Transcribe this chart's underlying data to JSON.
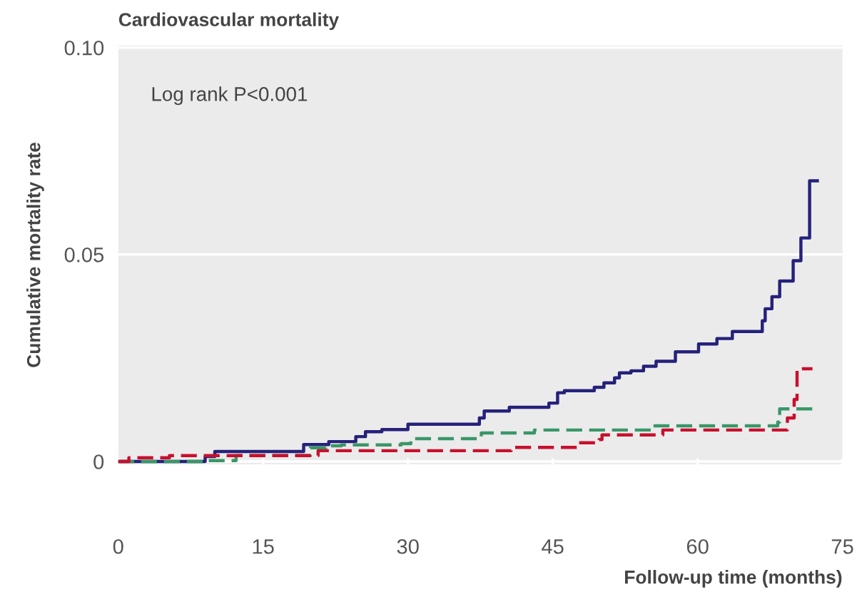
{
  "chart_data": {
    "type": "step",
    "title": "Cardiovascular mortality",
    "xlabel": "Follow-up time (months)",
    "ylabel": "Cumulative mortality rate",
    "annotations": [
      "Log rank P<0.001"
    ],
    "xlim": [
      0,
      75
    ],
    "xticks": [
      0,
      15,
      30,
      45,
      60,
      75
    ],
    "ylim": [
      -0.0007,
      0.1005
    ],
    "yticks": [
      0,
      0.05,
      {
        "value": 0.1,
        "label": "0.10"
      }
    ],
    "grid": "y",
    "series": [
      {
        "color": "#25217a",
        "line_style": "solid",
        "x": [
          0,
          9.0,
          10.0,
          19.2,
          21.8,
          24.6,
          25.6,
          27.3,
          30.0,
          37.4,
          37.9,
          40.5,
          44.6,
          45.5,
          46.2,
          49.3,
          50.3,
          51.4,
          51.9,
          53.1,
          54.4,
          55.7,
          57.7,
          60.1,
          62.0,
          63.6,
          66.7,
          67.0,
          67.7,
          68.5,
          69.9,
          70.7,
          71.6,
          72.4
        ],
        "values": [
          0,
          0.0012,
          0.0024,
          0.0041,
          0.0048,
          0.006,
          0.0072,
          0.0077,
          0.009,
          0.0105,
          0.0122,
          0.0131,
          0.0141,
          0.0166,
          0.0171,
          0.0179,
          0.019,
          0.0202,
          0.0214,
          0.0219,
          0.023,
          0.0242,
          0.0265,
          0.0284,
          0.0297,
          0.0314,
          0.034,
          0.0369,
          0.0398,
          0.0436,
          0.0485,
          0.054,
          0.0678,
          0.0678
        ]
      },
      {
        "color": "#3a9668",
        "line_style": "dashed",
        "x": [
          0,
          9.0,
          12.2,
          19.9,
          21.5,
          23.1,
          29.3,
          30.3,
          37.6,
          43.1,
          55.2,
          68.3,
          68.5,
          72.2
        ],
        "values": [
          0,
          0.0002,
          0.0014,
          0.0033,
          0.0038,
          0.004,
          0.0043,
          0.0055,
          0.0069,
          0.0076,
          0.0086,
          0.0095,
          0.0127,
          0.0127
        ]
      },
      {
        "color": "#c8102e",
        "line_style": "dashed",
        "x": [
          0,
          1.1,
          5.3,
          20.7,
          40.7,
          47.6,
          49.8,
          50.1,
          56.4,
          69.3,
          70.0,
          70.3,
          71.9
        ],
        "values": [
          0,
          0.0009,
          0.0014,
          0.0026,
          0.0034,
          0.0045,
          0.0053,
          0.0064,
          0.0076,
          0.0105,
          0.015,
          0.0224,
          0.0224
        ]
      }
    ]
  }
}
